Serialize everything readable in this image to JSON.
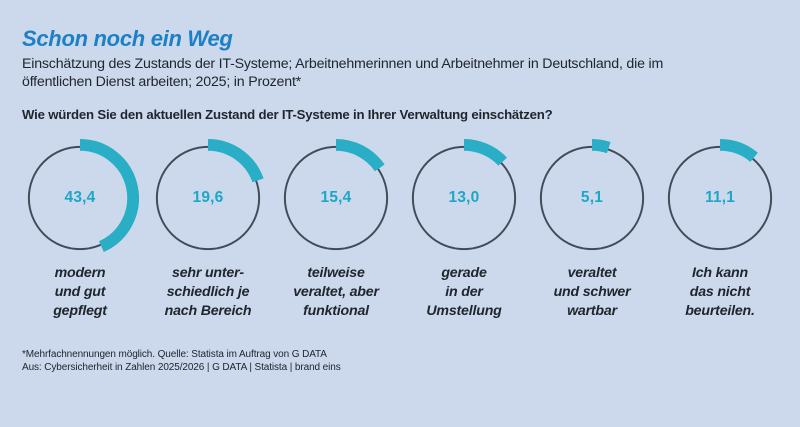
{
  "header": {
    "title": "Schon noch ein Weg",
    "subtitle": "Einschätzung des Zustands der IT-Systeme; Arbeitnehmerinnen und Arbeitnehmer in Deutschland, die im\nöffentlichen Dienst arbeiten; 2025; in Prozent*",
    "question": "Wie würden Sie den aktuellen Zustand der IT-Systeme in Ihrer Verwaltung einschätzen?"
  },
  "chart_data": {
    "type": "donut",
    "unit": "percent",
    "legend_position": "none",
    "arc_start": "top",
    "arc_direction": "clockwise",
    "categories": [
      "modern und gut gepflegt",
      "sehr unterschiedlich je nach Bereich",
      "teilweise veraltet, aber funktional",
      "gerade in der Umstellung",
      "veraltet und schwer wartbar",
      "Ich kann das nicht beurteilen."
    ],
    "values": [
      43.4,
      19.6,
      15.4,
      13.0,
      5.1,
      11.1
    ],
    "values_display": [
      "43,4",
      "19,6",
      "15,4",
      "13,0",
      "5,1",
      "11,1"
    ],
    "labels_multiline": [
      "modern\nund gut\ngepflegt",
      "sehr unter-\nschiedlich je\nnach Bereich",
      "teilweise\nveraltet, aber\nfunktional",
      "gerade\nin der\nUmstellung",
      "veraltet\nund schwer\nwartbar",
      "Ich kann\ndas nicht\nbeurteilen."
    ]
  },
  "footer": {
    "note": "*Mehrfachnennungen möglich. Quelle: Statista im Auftrag von G DATA\nAus: Cybersicherheit in Zahlen 2025/2026 | G DATA | Statista | brand eins"
  },
  "colors": {
    "background": "#ccd9ec",
    "title_blue": "#1b80c5",
    "accent_teal": "#29aec6",
    "value_teal": "#1ca7c6",
    "ring_track": "#414c59",
    "text_dark": "#20262e"
  }
}
